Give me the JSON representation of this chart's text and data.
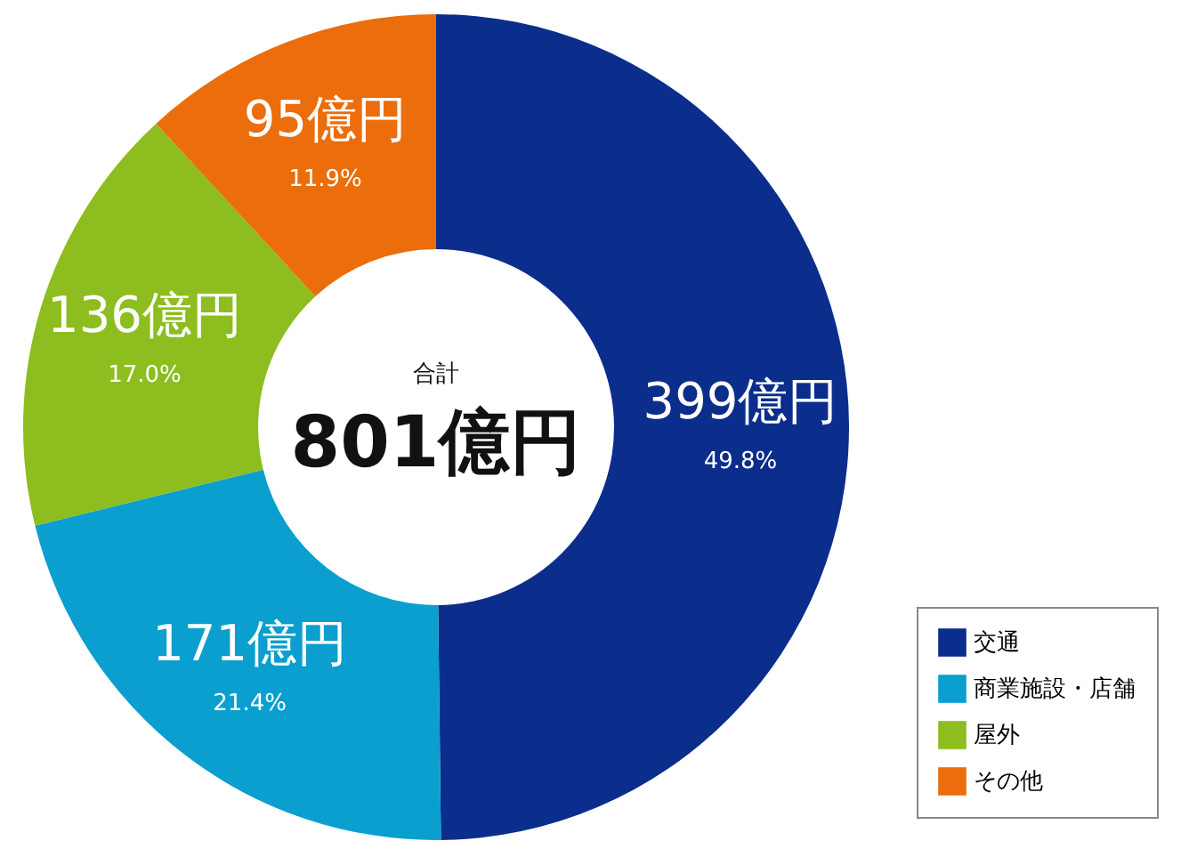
{
  "chart_data": {
    "type": "donut",
    "categories": [
      "交通",
      "商業施設・店舗",
      "屋外",
      "その他"
    ],
    "values": [
      399,
      171,
      136,
      95
    ],
    "colors": [
      "#0b2d8c",
      "#0a9fcf",
      "#8dbd1e",
      "#eb6d0b"
    ],
    "value_labels": [
      "399億円",
      "171億円",
      "136億円",
      "95億円"
    ],
    "annotations": [
      "合計",
      "801億円",
      "49.8%",
      "21.4%",
      "17.0%",
      "11.9%"
    ],
    "legend": "bottom right"
  }
}
